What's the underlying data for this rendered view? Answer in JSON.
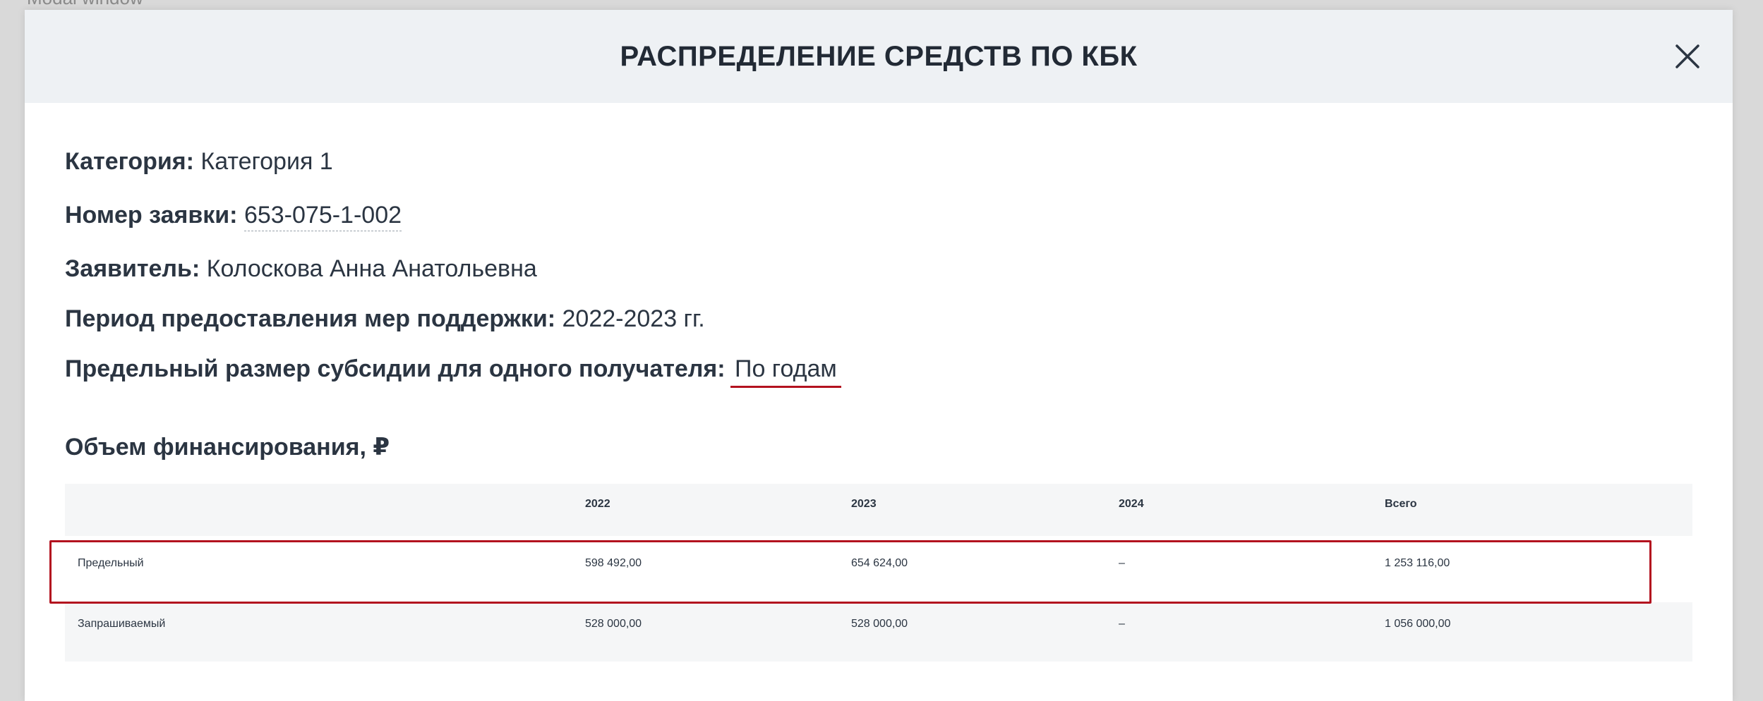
{
  "background": {
    "hint_text": "Modal window"
  },
  "modal": {
    "title": "РАСПРЕДЕЛЕНИЕ СРЕДСТВ ПО КБК",
    "close_icon": "close-icon"
  },
  "info": {
    "category_label": "Категория:",
    "category_value": "Категория 1",
    "application_number_label": "Номер заявки:",
    "application_number_value": "653-075-1-002",
    "applicant_label": "Заявитель:",
    "applicant_value": "Колоскова Анна Анатольевна",
    "period_label": "Период предоставления мер поддержки:",
    "period_value": "2022-2023 гг.",
    "limit_label": "Предельный размер субсидии для одного получателя:",
    "limit_value": "По годам"
  },
  "funding": {
    "title": "Объем финансирования, ₽",
    "columns": [
      "",
      "2022",
      "2023",
      "2024",
      "Всего"
    ],
    "rows": [
      [
        "Предельный",
        "598 492,00",
        "654 624,00",
        "–",
        "1 253 116,00"
      ],
      [
        "Запрашиваемый",
        "528 000,00",
        "528 000,00",
        "–",
        "1 056 000,00"
      ]
    ]
  },
  "colors": {
    "header_bg": "#eef1f4",
    "highlight": "#b3121f",
    "text": "#2b3542",
    "row_alt_bg": "#f5f6f7"
  }
}
